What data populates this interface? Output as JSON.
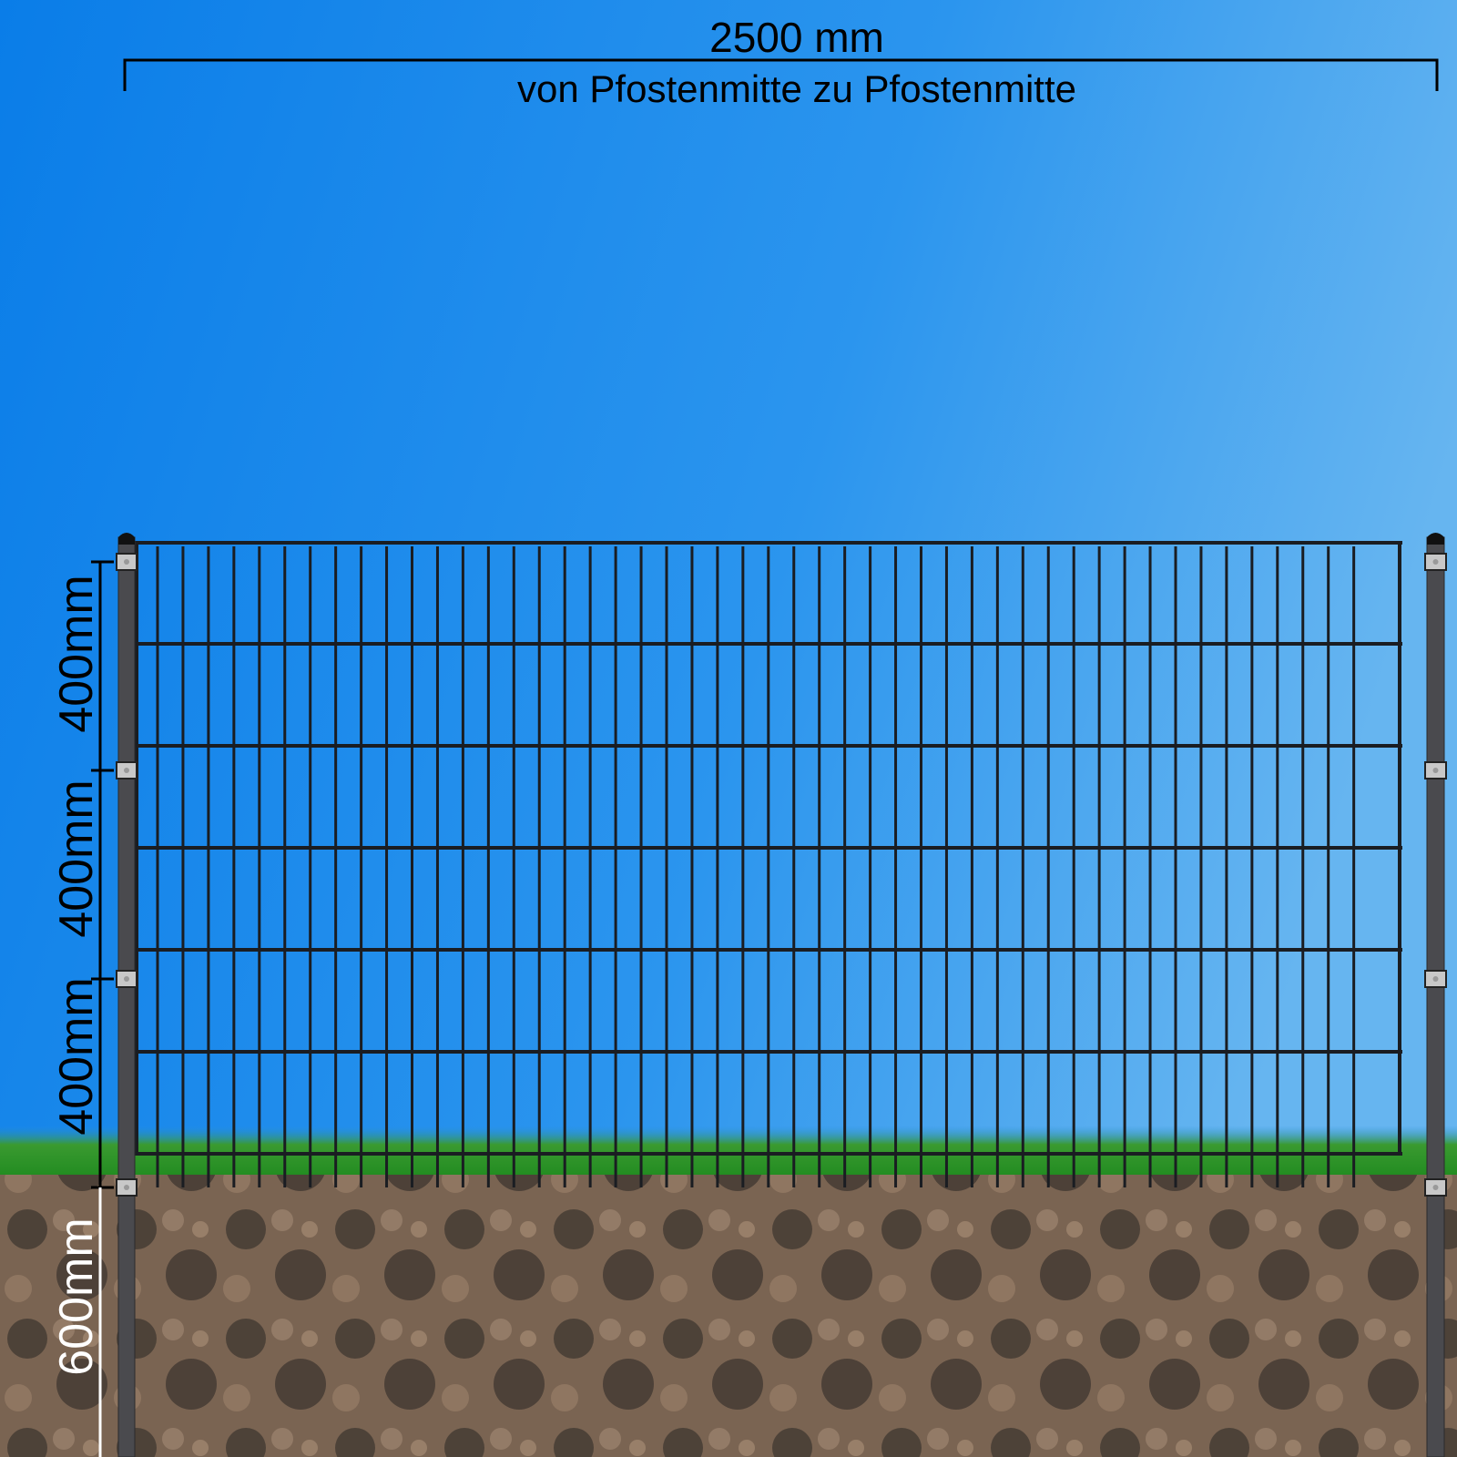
{
  "dimensions": {
    "width_label": "2500 mm",
    "width_note": "von Pfostenmitte zu Pfostenmitte",
    "height_segments": [
      "400mm",
      "400mm",
      "400mm"
    ],
    "ground_depth": "600mm"
  },
  "colors": {
    "sky_left": "#0a82ea",
    "sky_right": "#5cb0f0",
    "fence": "#1a1d22",
    "post": "#4a4a4e",
    "grass": "#2f9a2a",
    "soil": "#6b5848"
  }
}
